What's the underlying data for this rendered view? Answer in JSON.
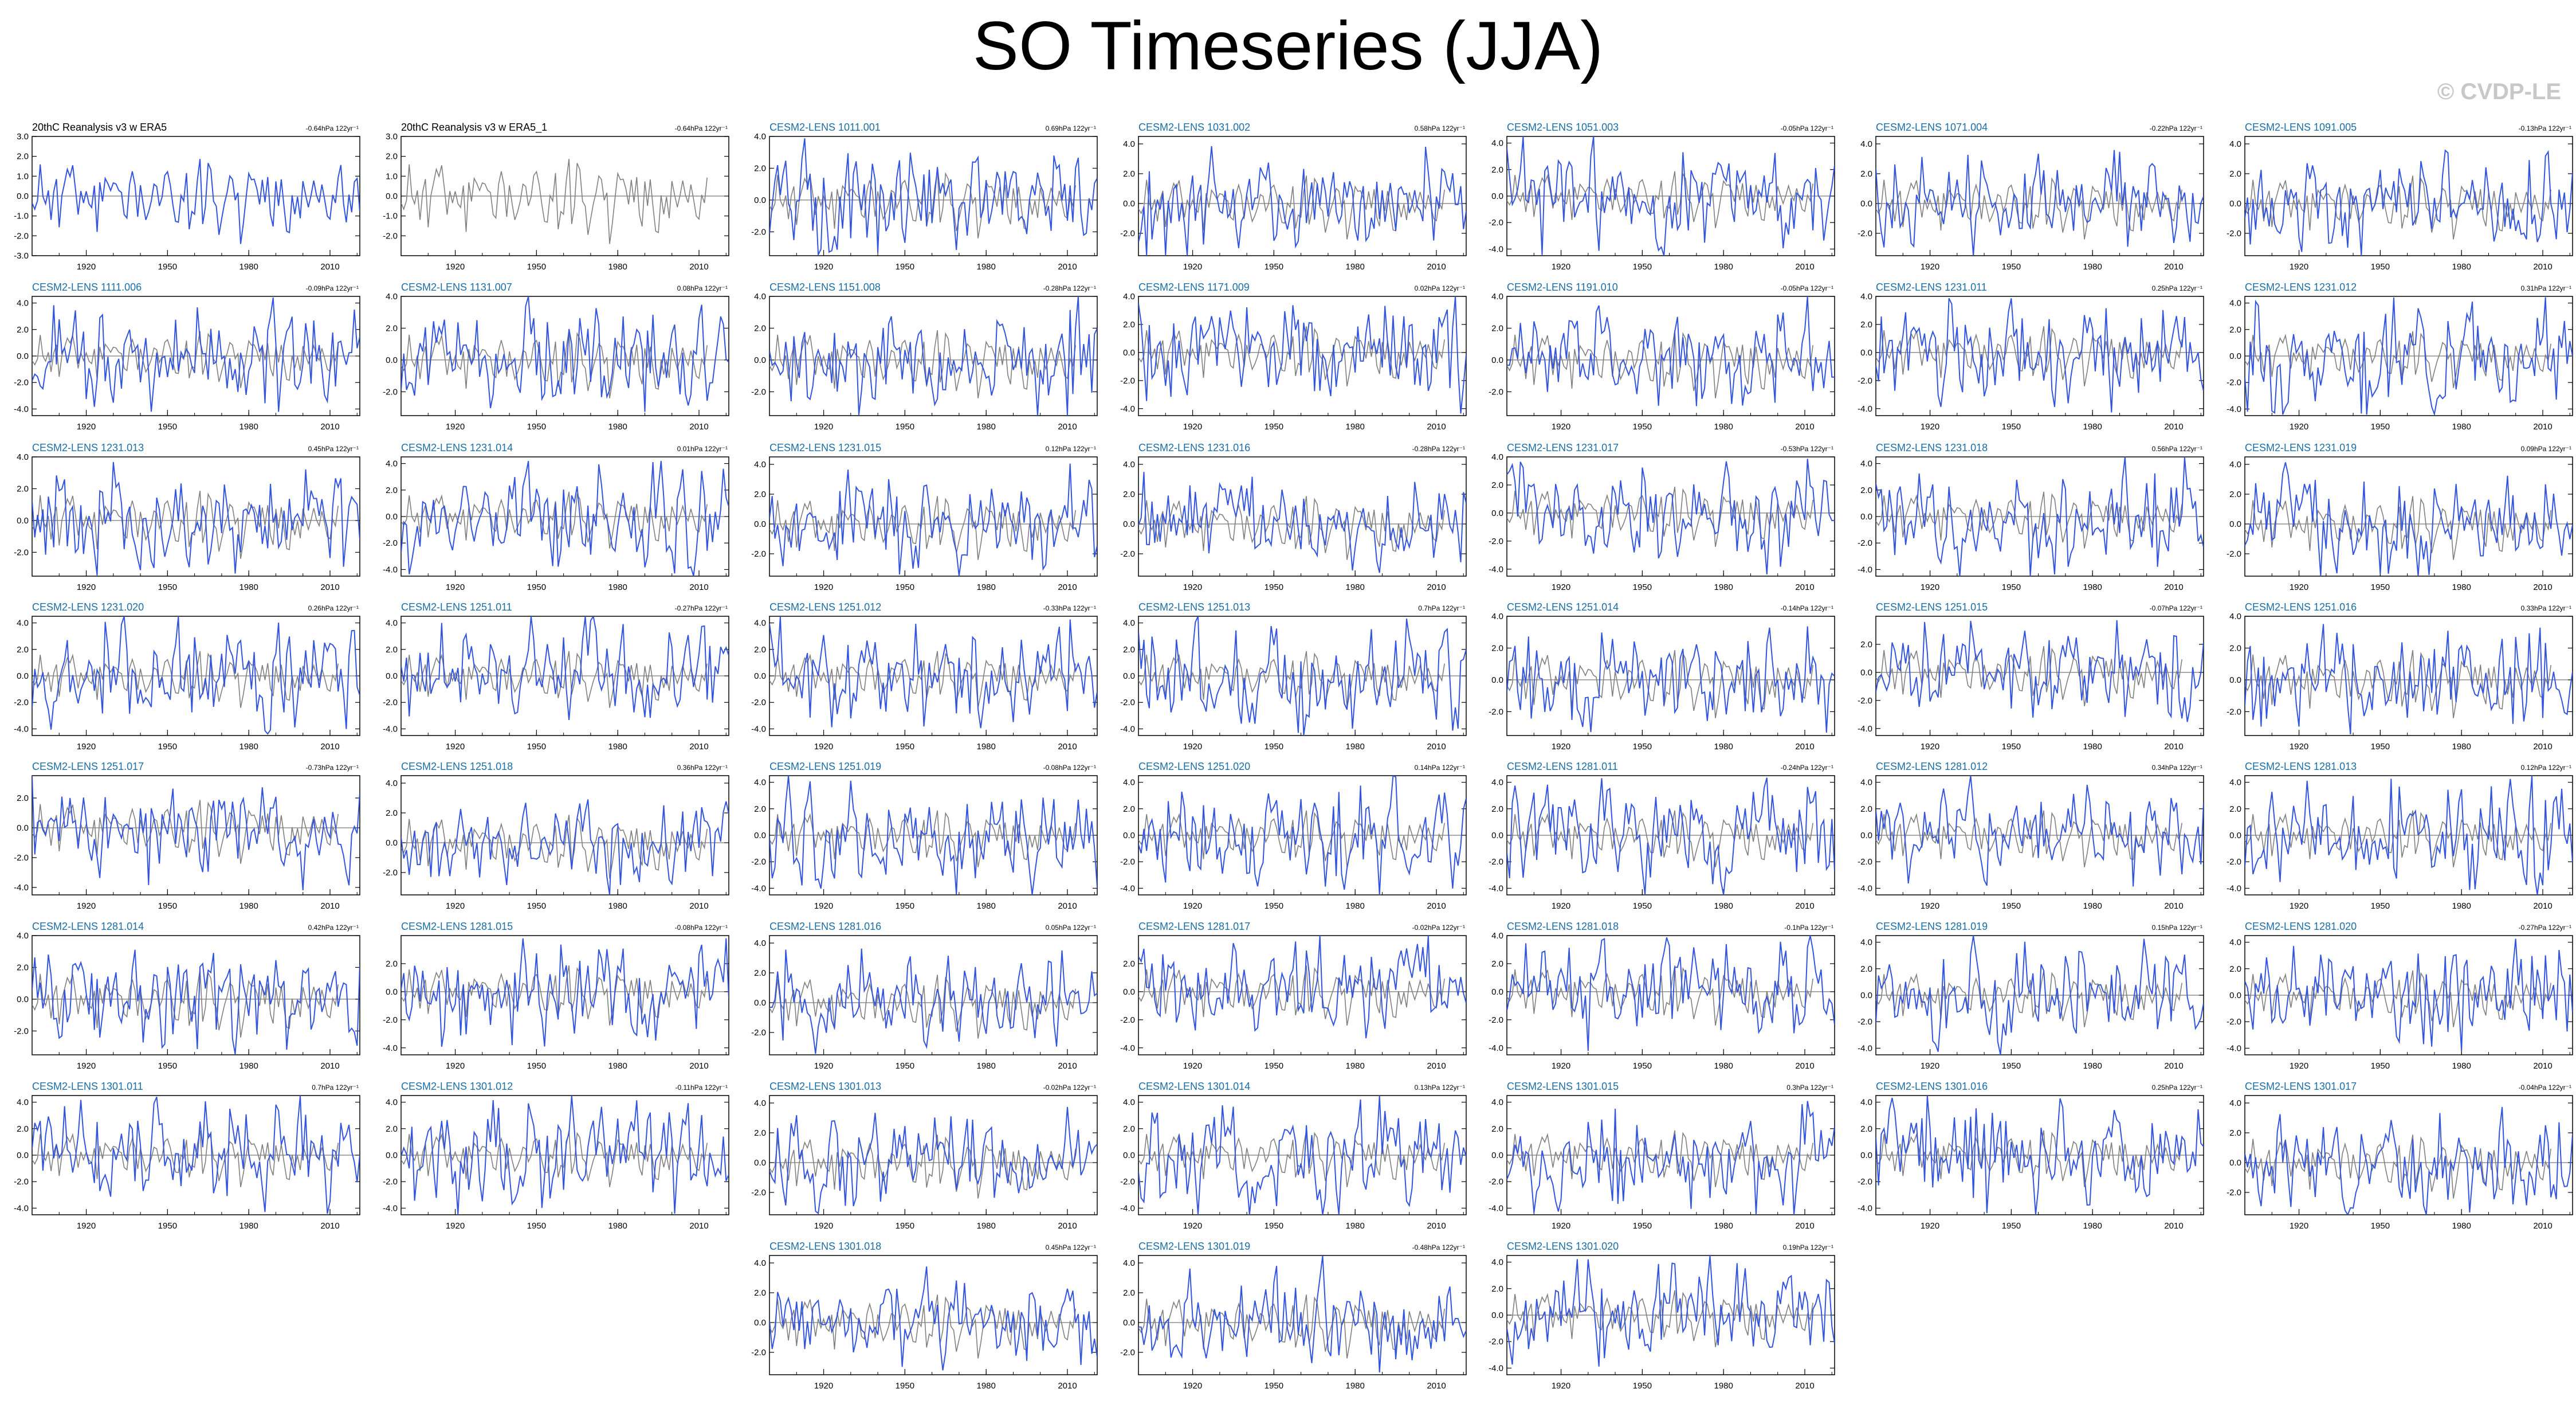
{
  "title": "SO Timeseries (JJA)",
  "copyright": "© CVDP-LE",
  "colors": {
    "member": "#3355dd",
    "obs": "#808080",
    "label": "#1a6ea8",
    "black": "#000000"
  },
  "x_ticks": [
    1920,
    1950,
    1980,
    2010
  ],
  "x_range": [
    1900,
    2021
  ],
  "chart_data": {
    "type": "line",
    "layout": "small-multiples",
    "xlabel": "",
    "ylabel": "",
    "panels": [
      {
        "title": "20thC Reanalysis v3 w ERA5",
        "trend": "-0.64hPa 122yr⁻¹",
        "obs": true,
        "ylim": [
          -3,
          3
        ],
        "yticks": [
          "3.0",
          "2.0",
          "1.0",
          "0.0",
          "-1.0",
          "-2.0",
          "-3.0"
        ],
        "seed": 11
      },
      {
        "title": "20thC Reanalysis v3 w ERA5_1",
        "trend": "-0.64hPa 122yr⁻¹",
        "obs": true,
        "gray": true,
        "ylim": [
          -3,
          3
        ],
        "yticks": [
          "3.0",
          "2.0",
          "1.0",
          "0.0",
          "-1.0",
          "-2.0"
        ],
        "seed": 11
      },
      {
        "title": "CESM2-LENS 1011.001",
        "trend": "0.69hPa 122yr⁻¹",
        "ylim": [
          -3.5,
          4
        ],
        "yticks": [
          "4.0",
          "2.0",
          "0.0",
          "-2.0"
        ],
        "seed": 21
      },
      {
        "title": "CESM2-LENS 1031.002",
        "trend": "0.58hPa 122yr⁻¹",
        "ylim": [
          -3.5,
          4.5
        ],
        "yticks": [
          "4.0",
          "2.0",
          "0.0",
          "-2.0"
        ],
        "seed": 22
      },
      {
        "title": "CESM2-LENS 1051.003",
        "trend": "-0.05hPa 122yr⁻¹",
        "ylim": [
          -4.5,
          4.5
        ],
        "yticks": [
          "4.0",
          "2.0",
          "0.0",
          "-2.0",
          "-4.0"
        ],
        "seed": 23
      },
      {
        "title": "CESM2-LENS 1071.004",
        "trend": "-0.22hPa 122yr⁻¹",
        "ylim": [
          -3.5,
          4.5
        ],
        "yticks": [
          "4.0",
          "2.0",
          "0.0",
          "-2.0"
        ],
        "seed": 24
      },
      {
        "title": "CESM2-LENS 1091.005",
        "trend": "-0.13hPa 122yr⁻¹",
        "ylim": [
          -3.5,
          4.5
        ],
        "yticks": [
          "4.0",
          "2.0",
          "0.0",
          "-2.0"
        ],
        "seed": 25
      },
      {
        "title": "CESM2-LENS 1111.006",
        "trend": "-0.09hPa 122yr⁻¹",
        "ylim": [
          -4.5,
          4.5
        ],
        "yticks": [
          "4.0",
          "2.0",
          "0.0",
          "-2.0",
          "-4.0"
        ],
        "seed": 26
      },
      {
        "title": "CESM2-LENS 1131.007",
        "trend": "0.08hPa 122yr⁻¹",
        "ylim": [
          -3.5,
          4
        ],
        "yticks": [
          "4.0",
          "2.0",
          "0.0",
          "-2.0"
        ],
        "seed": 27
      },
      {
        "title": "CESM2-LENS 1151.008",
        "trend": "-0.28hPa 122yr⁻¹",
        "ylim": [
          -3.5,
          4
        ],
        "yticks": [
          "4.0",
          "2.0",
          "0.0",
          "-2.0"
        ],
        "seed": 28
      },
      {
        "title": "CESM2-LENS 1171.009",
        "trend": "0.02hPa 122yr⁻¹",
        "ylim": [
          -4.5,
          4
        ],
        "yticks": [
          "4.0",
          "2.0",
          "0.0",
          "-2.0",
          "-4.0"
        ],
        "seed": 29
      },
      {
        "title": "CESM2-LENS 1191.010",
        "trend": "-0.05hPa 122yr⁻¹",
        "ylim": [
          -3.5,
          4
        ],
        "yticks": [
          "4.0",
          "2.0",
          "0.0",
          "-2.0"
        ],
        "seed": 30
      },
      {
        "title": "CESM2-LENS 1231.011",
        "trend": "0.25hPa 122yr⁻¹",
        "ylim": [
          -4.5,
          4
        ],
        "yticks": [
          "4.0",
          "2.0",
          "0.0",
          "-2.0",
          "-4.0"
        ],
        "seed": 31
      },
      {
        "title": "CESM2-LENS 1231.012",
        "trend": "0.31hPa 122yr⁻¹",
        "ylim": [
          -4.5,
          4.5
        ],
        "yticks": [
          "4.0",
          "2.0",
          "0.0",
          "-2.0",
          "-4.0"
        ],
        "seed": 32
      },
      {
        "title": "CESM2-LENS 1231.013",
        "trend": "0.45hPa 122yr⁻¹",
        "ylim": [
          -3.5,
          4
        ],
        "yticks": [
          "4.0",
          "2.0",
          "0.0",
          "-2.0"
        ],
        "seed": 33
      },
      {
        "title": "CESM2-LENS 1231.014",
        "trend": "0.01hPa 122yr⁻¹",
        "ylim": [
          -4.5,
          4.5
        ],
        "yticks": [
          "4.0",
          "2.0",
          "0.0",
          "-2.0",
          "-4.0"
        ],
        "seed": 34
      },
      {
        "title": "CESM2-LENS 1231.015",
        "trend": "0.12hPa 122yr⁻¹",
        "ylim": [
          -3.5,
          4.5
        ],
        "yticks": [
          "4.0",
          "2.0",
          "0.0",
          "-2.0"
        ],
        "seed": 35
      },
      {
        "title": "CESM2-LENS 1231.016",
        "trend": "-0.28hPa 122yr⁻¹",
        "ylim": [
          -3.5,
          4.5
        ],
        "yticks": [
          "4.0",
          "2.0",
          "0.0",
          "-2.0"
        ],
        "seed": 36
      },
      {
        "title": "CESM2-LENS 1231.017",
        "trend": "-0.53hPa 122yr⁻¹",
        "ylim": [
          -4.5,
          4
        ],
        "yticks": [
          "4.0",
          "2.0",
          "0.0",
          "-2.0",
          "-4.0"
        ],
        "seed": 37
      },
      {
        "title": "CESM2-LENS 1231.018",
        "trend": "0.56hPa 122yr⁻¹",
        "ylim": [
          -4.5,
          4.5
        ],
        "yticks": [
          "4.0",
          "2.0",
          "0.0",
          "-2.0",
          "-4.0"
        ],
        "seed": 38
      },
      {
        "title": "CESM2-LENS 1231.019",
        "trend": "0.09hPa 122yr⁻¹",
        "ylim": [
          -3.5,
          4.5
        ],
        "yticks": [
          "4.0",
          "2.0",
          "0.0",
          "-2.0"
        ],
        "seed": 39
      },
      {
        "title": "CESM2-LENS 1231.020",
        "trend": "0.26hPa 122yr⁻¹",
        "ylim": [
          -4.5,
          4.5
        ],
        "yticks": [
          "4.0",
          "2.0",
          "0.0",
          "-2.0",
          "-4.0"
        ],
        "seed": 40
      },
      {
        "title": "CESM2-LENS 1251.011",
        "trend": "-0.27hPa 122yr⁻¹",
        "ylim": [
          -4.5,
          4.5
        ],
        "yticks": [
          "4.0",
          "2.0",
          "0.0",
          "-2.0",
          "-4.0"
        ],
        "seed": 41
      },
      {
        "title": "CESM2-LENS 1251.012",
        "trend": "-0.33hPa 122yr⁻¹",
        "ylim": [
          -4.5,
          4.5
        ],
        "yticks": [
          "4.0",
          "2.0",
          "0.0",
          "-2.0",
          "-4.0"
        ],
        "seed": 42
      },
      {
        "title": "CESM2-LENS 1251.013",
        "trend": "0.7hPa 122yr⁻¹",
        "ylim": [
          -4.5,
          4.5
        ],
        "yticks": [
          "4.0",
          "2.0",
          "0.0",
          "-2.0",
          "-4.0"
        ],
        "seed": 43
      },
      {
        "title": "CESM2-LENS 1251.014",
        "trend": "-0.14hPa 122yr⁻¹",
        "ylim": [
          -3.5,
          4
        ],
        "yticks": [
          "4.0",
          "2.0",
          "0.0",
          "-2.0"
        ],
        "seed": 44
      },
      {
        "title": "CESM2-LENS 1251.015",
        "trend": "-0.07hPa 122yr⁻¹",
        "ylim": [
          -4.5,
          4
        ],
        "yticks": [
          "2.0",
          "0.0",
          "-2.0",
          "-4.0"
        ],
        "seed": 45
      },
      {
        "title": "CESM2-LENS 1251.016",
        "trend": "0.33hPa 122yr⁻¹",
        "ylim": [
          -3.5,
          4
        ],
        "yticks": [
          "4.0",
          "2.0",
          "0.0",
          "-2.0"
        ],
        "seed": 46
      },
      {
        "title": "CESM2-LENS 1251.017",
        "trend": "-0.73hPa 122yr⁻¹",
        "ylim": [
          -4.5,
          3.5
        ],
        "yticks": [
          "2.0",
          "0.0",
          "-2.0",
          "-4.0"
        ],
        "seed": 47
      },
      {
        "title": "CESM2-LENS 1251.018",
        "trend": "0.36hPa 122yr⁻¹",
        "ylim": [
          -3.5,
          4.5
        ],
        "yticks": [
          "4.0",
          "2.0",
          "0.0",
          "-2.0"
        ],
        "seed": 48
      },
      {
        "title": "CESM2-LENS 1251.019",
        "trend": "-0.08hPa 122yr⁻¹",
        "ylim": [
          -4.5,
          4.5
        ],
        "yticks": [
          "4.0",
          "2.0",
          "0.0",
          "-2.0",
          "-4.0"
        ],
        "seed": 49
      },
      {
        "title": "CESM2-LENS 1251.020",
        "trend": "0.14hPa 122yr⁻¹",
        "ylim": [
          -4.5,
          4.5
        ],
        "yticks": [
          "4.0",
          "2.0",
          "0.0",
          "-2.0",
          "-4.0"
        ],
        "seed": 50
      },
      {
        "title": "CESM2-LENS 1281.011",
        "trend": "-0.24hPa 122yr⁻¹",
        "ylim": [
          -4.5,
          4.5
        ],
        "yticks": [
          "4.0",
          "2.0",
          "0.0",
          "-2.0",
          "-4.0"
        ],
        "seed": 51
      },
      {
        "title": "CESM2-LENS 1281.012",
        "trend": "0.34hPa 122yr⁻¹",
        "ylim": [
          -4.5,
          4.5
        ],
        "yticks": [
          "4.0",
          "2.0",
          "0.0",
          "-2.0",
          "-4.0"
        ],
        "seed": 52
      },
      {
        "title": "CESM2-LENS 1281.013",
        "trend": "0.12hPa 122yr⁻¹",
        "ylim": [
          -4.5,
          4.5
        ],
        "yticks": [
          "4.0",
          "2.0",
          "0.0",
          "-2.0",
          "-4.0"
        ],
        "seed": 53
      },
      {
        "title": "CESM2-LENS 1281.014",
        "trend": "0.42hPa 122yr⁻¹",
        "ylim": [
          -3.5,
          4
        ],
        "yticks": [
          "4.0",
          "2.0",
          "0.0",
          "-2.0"
        ],
        "seed": 54
      },
      {
        "title": "CESM2-LENS 1281.015",
        "trend": "-0.08hPa 122yr⁻¹",
        "ylim": [
          -4.5,
          4
        ],
        "yticks": [
          "2.0",
          "0.0",
          "-2.0",
          "-4.0"
        ],
        "seed": 55
      },
      {
        "title": "CESM2-LENS 1281.016",
        "trend": "0.05hPa 122yr⁻¹",
        "ylim": [
          -3.5,
          4.5
        ],
        "yticks": [
          "4.0",
          "2.0",
          "0.0",
          "-2.0"
        ],
        "seed": 56
      },
      {
        "title": "CESM2-LENS 1281.017",
        "trend": "-0.02hPa 122yr⁻¹",
        "ylim": [
          -4.5,
          4
        ],
        "yticks": [
          "2.0",
          "0.0",
          "-2.0",
          "-4.0"
        ],
        "seed": 57
      },
      {
        "title": "CESM2-LENS 1281.018",
        "trend": "-0.1hPa 122yr⁻¹",
        "ylim": [
          -4.5,
          4
        ],
        "yticks": [
          "4.0",
          "2.0",
          "0.0",
          "-2.0",
          "-4.0"
        ],
        "seed": 58
      },
      {
        "title": "CESM2-LENS 1281.019",
        "trend": "0.15hPa 122yr⁻¹",
        "ylim": [
          -4.5,
          4.5
        ],
        "yticks": [
          "4.0",
          "2.0",
          "0.0",
          "-2.0",
          "-4.0"
        ],
        "seed": 59
      },
      {
        "title": "CESM2-LENS 1281.020",
        "trend": "-0.27hPa 122yr⁻¹",
        "ylim": [
          -4.5,
          4.5
        ],
        "yticks": [
          "4.0",
          "2.0",
          "0.0",
          "-2.0",
          "-4.0"
        ],
        "seed": 60
      },
      {
        "title": "CESM2-LENS 1301.011",
        "trend": "0.7hPa 122yr⁻¹",
        "ylim": [
          -4.5,
          4.5
        ],
        "yticks": [
          "4.0",
          "2.0",
          "0.0",
          "-2.0",
          "-4.0"
        ],
        "seed": 61
      },
      {
        "title": "CESM2-LENS 1301.012",
        "trend": "-0.11hPa 122yr⁻¹",
        "ylim": [
          -4.5,
          4.5
        ],
        "yticks": [
          "4.0",
          "2.0",
          "0.0",
          "-2.0",
          "-4.0"
        ],
        "seed": 62
      },
      {
        "title": "CESM2-LENS 1301.013",
        "trend": "-0.02hPa 122yr⁻¹",
        "ylim": [
          -3.5,
          4.5
        ],
        "yticks": [
          "4.0",
          "2.0",
          "0.0",
          "-2.0"
        ],
        "seed": 63
      },
      {
        "title": "CESM2-LENS 1301.014",
        "trend": "0.13hPa 122yr⁻¹",
        "ylim": [
          -4.5,
          4.5
        ],
        "yticks": [
          "4.0",
          "2.0",
          "0.0",
          "-2.0",
          "-4.0"
        ],
        "seed": 64
      },
      {
        "title": "CESM2-LENS 1301.015",
        "trend": "0.3hPa 122yr⁻¹",
        "ylim": [
          -4.5,
          4.5
        ],
        "yticks": [
          "4.0",
          "2.0",
          "0.0",
          "-2.0",
          "-4.0"
        ],
        "seed": 65
      },
      {
        "title": "CESM2-LENS 1301.016",
        "trend": "0.25hPa 122yr⁻¹",
        "ylim": [
          -4.5,
          4.5
        ],
        "yticks": [
          "4.0",
          "2.0",
          "0.0",
          "-2.0",
          "-4.0"
        ],
        "seed": 66
      },
      {
        "title": "CESM2-LENS 1301.017",
        "trend": "-0.04hPa 122yr⁻¹",
        "ylim": [
          -3.5,
          4.5
        ],
        "yticks": [
          "4.0",
          "2.0",
          "0.0",
          "-2.0"
        ],
        "seed": 67
      },
      {
        "title": "CESM2-LENS 1301.018",
        "trend": "0.45hPa 122yr⁻¹",
        "ylim": [
          -3.5,
          4.5
        ],
        "yticks": [
          "4.0",
          "2.0",
          "0.0",
          "-2.0"
        ],
        "seed": 68
      },
      {
        "title": "CESM2-LENS 1301.019",
        "trend": "-0.48hPa 122yr⁻¹",
        "ylim": [
          -3.5,
          4.5
        ],
        "yticks": [
          "4.0",
          "2.0",
          "0.0",
          "-2.0"
        ],
        "seed": 69
      },
      {
        "title": "CESM2-LENS 1301.020",
        "trend": "0.19hPa 122yr⁻¹",
        "ylim": [
          -4.5,
          4.5
        ],
        "yticks": [
          "4.0",
          "2.0",
          "0.0",
          "-2.0",
          "-4.0"
        ],
        "seed": 70
      }
    ]
  }
}
